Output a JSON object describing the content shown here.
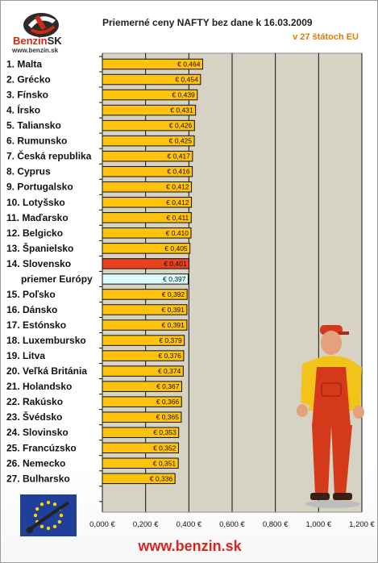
{
  "logo": {
    "brand": "Benzin",
    "brand_suffix": "SK",
    "url": "www.benzin.sk"
  },
  "header": {
    "title": "Priemerné ceny NAFTY bez dane k 16.03.2009",
    "subtitle": "v 27 štátoch EU"
  },
  "footer": {
    "url": "www.benzin.sk"
  },
  "colors": {
    "bar": "#ffc20e",
    "bar_border": "#111111",
    "highlight_bar": "#e8421c",
    "highlight_label": "#e8421c",
    "average_bar": "#d9fbfb",
    "average_label": "#2aa3e0",
    "plot_background": "#d6d2c4",
    "brand_red": "#d7261e"
  },
  "icons": [
    "benzin-logo-icon",
    "eu-flag-icon",
    "fuel-attendant-mascot-icon"
  ],
  "chart_data": {
    "type": "bar",
    "orientation": "horizontal",
    "title": "Priemerné ceny NAFTY bez dane k 16.03.2009",
    "subtitle": "v 27 štátoch EU",
    "categories": [
      "1. Malta",
      "2. Grécko",
      "3. Fínsko",
      "4. Írsko",
      "5. Taliansko",
      "6. Rumunsko",
      "7. Česká republika",
      "8. Cyprus",
      "9. Portugalsko",
      "10. Lotyšsko",
      "11. Maďarsko",
      "12. Belgicko",
      "13. Španielsko",
      "14. Slovensko",
      "priemer Európy",
      "15. Poľsko",
      "16. Dánsko",
      "17. Estónsko",
      "18. Luxembursko",
      "19. Litva",
      "20. Veľká Británia",
      "21. Holandsko",
      "22. Rakúsko",
      "23. Švédsko",
      "24. Slovinsko",
      "25. Francúzsko",
      "26. Nemecko",
      "27. Bulharsko"
    ],
    "values": [
      0.464,
      0.454,
      0.439,
      0.431,
      0.426,
      0.425,
      0.417,
      0.416,
      0.412,
      0.412,
      0.411,
      0.41,
      0.405,
      0.401,
      0.397,
      0.392,
      0.391,
      0.391,
      0.379,
      0.376,
      0.374,
      0.367,
      0.366,
      0.365,
      0.353,
      0.352,
      0.351,
      0.336
    ],
    "value_labels": [
      "€ 0,464",
      "€ 0,454",
      "€ 0,439",
      "€ 0,431",
      "€ 0,426",
      "€ 0,425",
      "€ 0,417",
      "€ 0,416",
      "€ 0,412",
      "€ 0,412",
      "€ 0,411",
      "€ 0,410",
      "€ 0,405",
      "€ 0,401",
      "€ 0,397",
      "€ 0,392",
      "€ 0,391",
      "€ 0,391",
      "€ 0,379",
      "€ 0,376",
      "€ 0,374",
      "€ 0,367",
      "€ 0,366",
      "€ 0,365",
      "€ 0,353",
      "€ 0,352",
      "€ 0,351",
      "€ 0,336"
    ],
    "highlight": {
      "category": "14. Slovensko"
    },
    "average": {
      "category": "priemer Európy"
    },
    "x_ticks": [
      0,
      0.2,
      0.4,
      0.6,
      0.8,
      1.0,
      1.2
    ],
    "x_tick_labels": [
      "0,000 €",
      "0,200 €",
      "0,400 €",
      "0,600 €",
      "0,800 €",
      "1,000 €",
      "1,200 €"
    ],
    "xlim": [
      0,
      1.2
    ],
    "grid": true
  }
}
